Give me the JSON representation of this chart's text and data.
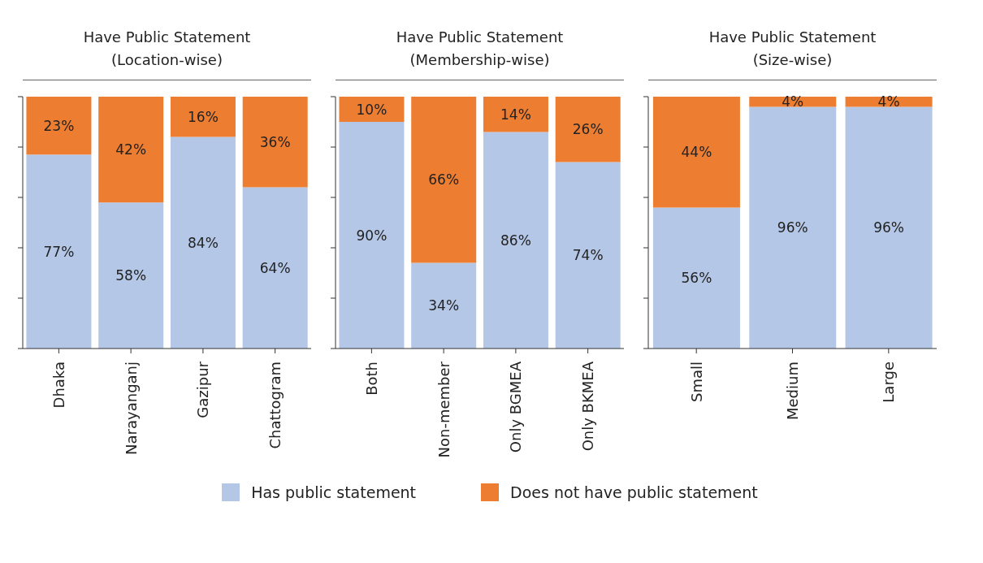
{
  "chart_data": [
    {
      "type": "bar",
      "title": "Have Public Statement",
      "subtitle": "(Location-wise)",
      "categories": [
        "Dhaka",
        "Narayanganj",
        "Gazipur",
        "Chattogram"
      ],
      "stacked": true,
      "grid": false,
      "legend": "bottom",
      "series": [
        {
          "name": "Has public statement",
          "color": "#b4c7e7",
          "values": [
            77,
            58,
            84,
            64
          ],
          "value_labels": [
            "77%",
            "58%",
            "84%",
            "64%"
          ]
        },
        {
          "name": "Does not have public statement",
          "color": "#ed7d31",
          "values": [
            23,
            42,
            16,
            36
          ],
          "value_labels": [
            "23%",
            "42%",
            "16%",
            "36%"
          ]
        }
      ]
    },
    {
      "type": "bar",
      "title": "Have Public Statement",
      "subtitle": "(Membership-wise)",
      "categories": [
        "Both",
        "Non-member",
        "Only BGMEA",
        "Only BKMEA"
      ],
      "stacked": true,
      "grid": false,
      "series": [
        {
          "color": "#b4c7e7",
          "values": [
            90,
            34,
            86,
            74
          ],
          "value_labels": [
            "90%",
            "34%",
            "86%",
            "74%"
          ]
        },
        {
          "color": "#ed7d31",
          "values": [
            10,
            66,
            14,
            26
          ],
          "value_labels": [
            "10%",
            "66%",
            "14%",
            "26%"
          ]
        }
      ]
    },
    {
      "type": "bar",
      "title": "Have Public Statement",
      "subtitle": "(Size-wise)",
      "categories": [
        "Small",
        "Medium",
        "Large"
      ],
      "stacked": true,
      "grid": false,
      "series": [
        {
          "color": "#b4c7e7",
          "values": [
            56,
            96,
            96
          ],
          "value_labels": [
            "56%",
            "96%",
            "96%"
          ]
        },
        {
          "color": "#ed7d31",
          "values": [
            44,
            4,
            4
          ],
          "value_labels": [
            "44%",
            "4%",
            "4%"
          ]
        }
      ]
    }
  ]
}
